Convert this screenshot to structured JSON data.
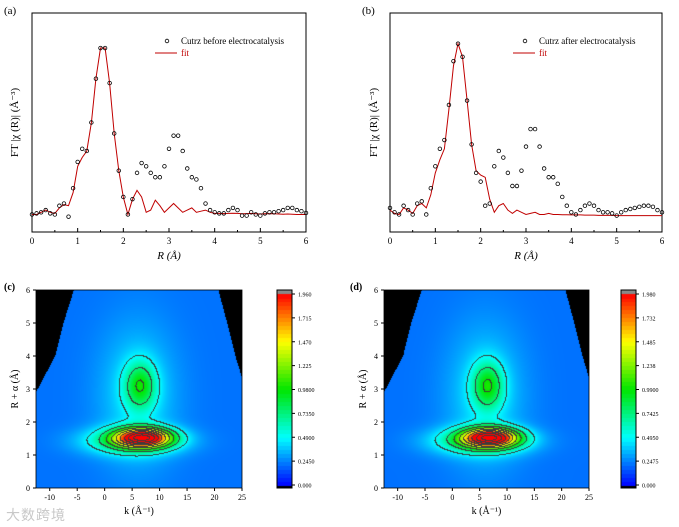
{
  "figure": {
    "watermark": "大数跨境"
  },
  "chart_data": [
    {
      "panel_label": "(a)",
      "type": "line",
      "xlabel": "R (Å)",
      "ylabel": "FT |χ (R)| (Å⁻³)",
      "xlim": [
        0,
        6
      ],
      "ylim": [
        0,
        1
      ],
      "xticks": [
        "0",
        "1",
        "2",
        "3",
        "4",
        "5",
        "6"
      ],
      "legend": {
        "position": "top-right"
      },
      "x": [
        0,
        0.1,
        0.2,
        0.3,
        0.4,
        0.5,
        0.6,
        0.7,
        0.8,
        0.9,
        1.0,
        1.1,
        1.2,
        1.3,
        1.4,
        1.5,
        1.6,
        1.7,
        1.8,
        1.9,
        2.0,
        2.1,
        2.2,
        2.3,
        2.4,
        2.5,
        2.6,
        2.7,
        2.8,
        2.9,
        3.0,
        3.1,
        3.2,
        3.3,
        3.4,
        3.5,
        3.6,
        3.7,
        3.8,
        3.9,
        4.0,
        4.1,
        4.2,
        4.3,
        4.4,
        4.5,
        4.6,
        4.7,
        4.8,
        4.9,
        5.0,
        5.1,
        5.2,
        5.3,
        5.4,
        5.5,
        5.6,
        5.7,
        5.8,
        5.9,
        6.0
      ],
      "series": [
        {
          "name": "Cutrz before electrocatalysis",
          "style": "open-circle",
          "color": "#000000",
          "values": [
            0.08,
            0.085,
            0.09,
            0.1,
            0.085,
            0.08,
            0.12,
            0.13,
            0.07,
            0.2,
            0.32,
            0.38,
            0.37,
            0.5,
            0.7,
            0.84,
            0.84,
            0.68,
            0.45,
            0.28,
            0.16,
            0.08,
            0.15,
            0.27,
            0.315,
            0.3,
            0.27,
            0.25,
            0.25,
            0.3,
            0.38,
            0.44,
            0.44,
            0.37,
            0.29,
            0.25,
            0.24,
            0.2,
            0.13,
            0.1,
            0.09,
            0.085,
            0.085,
            0.1,
            0.11,
            0.1,
            0.075,
            0.075,
            0.09,
            0.08,
            0.075,
            0.085,
            0.09,
            0.09,
            0.095,
            0.1,
            0.11,
            0.11,
            0.1,
            0.095,
            0.087
          ]
        },
        {
          "name": "fit",
          "style": "line",
          "color": "#c00000",
          "values": [
            0.08,
            0.08,
            0.09,
            0.1,
            0.09,
            0.085,
            0.11,
            0.125,
            0.12,
            0.18,
            0.3,
            0.34,
            0.37,
            0.5,
            0.7,
            0.84,
            0.84,
            0.68,
            0.45,
            0.28,
            0.16,
            0.08,
            0.15,
            0.19,
            0.16,
            0.09,
            0.1,
            0.145,
            0.12,
            0.09,
            0.11,
            0.13,
            0.11,
            0.09,
            0.1,
            0.11,
            0.09,
            0.095,
            0.1,
            0.09,
            0.085,
            0.085,
            0.084,
            0.085,
            0.086,
            0.085,
            0.083,
            0.084,
            0.085,
            0.083,
            0.082,
            0.083,
            0.084,
            0.083,
            0.082,
            0.081,
            0.082,
            0.081,
            0.08,
            0.08,
            0.08
          ]
        }
      ]
    },
    {
      "panel_label": "(b)",
      "type": "line",
      "xlabel": "R (Å)",
      "ylabel": "FT |χ (R)| (Å⁻³)",
      "xlim": [
        0,
        6
      ],
      "ylim": [
        0,
        1
      ],
      "xticks": [
        "0",
        "1",
        "2",
        "3",
        "4",
        "5",
        "6"
      ],
      "legend": {
        "position": "top-right"
      },
      "x": [
        0,
        0.1,
        0.2,
        0.3,
        0.4,
        0.5,
        0.6,
        0.7,
        0.8,
        0.9,
        1.0,
        1.1,
        1.2,
        1.3,
        1.4,
        1.5,
        1.6,
        1.7,
        1.8,
        1.9,
        2.0,
        2.1,
        2.2,
        2.3,
        2.4,
        2.5,
        2.6,
        2.7,
        2.8,
        2.9,
        3.0,
        3.1,
        3.2,
        3.3,
        3.4,
        3.5,
        3.6,
        3.7,
        3.8,
        3.9,
        4.0,
        4.1,
        4.2,
        4.3,
        4.4,
        4.5,
        4.6,
        4.7,
        4.8,
        4.9,
        5.0,
        5.1,
        5.2,
        5.3,
        5.4,
        5.5,
        5.6,
        5.7,
        5.8,
        5.9,
        6.0
      ],
      "series": [
        {
          "name": "Cutrz after electrocatalysis",
          "style": "open-circle",
          "color": "#000000",
          "values": [
            0.11,
            0.09,
            0.08,
            0.12,
            0.1,
            0.08,
            0.13,
            0.14,
            0.08,
            0.2,
            0.3,
            0.38,
            0.42,
            0.58,
            0.78,
            0.86,
            0.8,
            0.6,
            0.4,
            0.27,
            0.23,
            0.12,
            0.13,
            0.3,
            0.37,
            0.34,
            0.27,
            0.21,
            0.21,
            0.28,
            0.39,
            0.47,
            0.47,
            0.39,
            0.29,
            0.25,
            0.25,
            0.22,
            0.16,
            0.12,
            0.09,
            0.08,
            0.1,
            0.12,
            0.13,
            0.12,
            0.1,
            0.09,
            0.09,
            0.085,
            0.075,
            0.09,
            0.1,
            0.105,
            0.11,
            0.115,
            0.12,
            0.12,
            0.115,
            0.1,
            0.09
          ]
        },
        {
          "name": "fit",
          "style": "line",
          "color": "#c00000",
          "values": [
            0.1,
            0.085,
            0.08,
            0.11,
            0.1,
            0.085,
            0.12,
            0.13,
            0.11,
            0.17,
            0.27,
            0.33,
            0.38,
            0.56,
            0.76,
            0.86,
            0.8,
            0.6,
            0.4,
            0.28,
            0.26,
            0.25,
            0.15,
            0.09,
            0.12,
            0.13,
            0.1,
            0.085,
            0.1,
            0.09,
            0.08,
            0.085,
            0.09,
            0.08,
            0.08,
            0.085,
            0.08,
            0.08,
            0.079,
            0.079,
            0.078,
            0.078,
            0.078,
            0.077,
            0.077,
            0.077,
            0.076,
            0.076,
            0.076,
            0.076,
            0.075,
            0.075,
            0.075,
            0.075,
            0.075,
            0.075,
            0.075,
            0.075,
            0.075,
            0.075,
            0.075
          ]
        }
      ]
    },
    {
      "panel_label": "(c)",
      "type": "heatmap",
      "xlabel": "k (Å⁻¹)",
      "ylabel": "R + α (Å)",
      "xlim": [
        -12.5,
        25
      ],
      "ylim": [
        0,
        6
      ],
      "xticks": [
        "-10",
        "-5",
        "0",
        "5",
        "10",
        "15",
        "20",
        "25"
      ],
      "yticks": [
        "0",
        "1",
        "2",
        "3",
        "4",
        "5",
        "6"
      ],
      "colorbar": {
        "min": 0,
        "max": 1.96,
        "ticks": [
          "0.000",
          "0.2450",
          "0.4900",
          "0.7350",
          "0.9800",
          "1.225",
          "1.470",
          "1.715",
          "1.960"
        ]
      },
      "contour_step": 0.245,
      "cone_of_influence": {
        "left": [
          [
            2.9,
            -12.5
          ],
          [
            4,
            -9
          ],
          [
            5,
            -7.5
          ],
          [
            6,
            -5.6
          ]
        ],
        "right": [
          [
            3.35,
            25
          ],
          [
            4,
            23.8
          ],
          [
            5,
            22.3
          ],
          [
            6,
            20.7
          ]
        ]
      },
      "components": [
        {
          "k": 7,
          "R": 1.52,
          "amp": 1.74,
          "sk": 3.5,
          "sR": 0.2
        },
        {
          "k": 5,
          "R": 1.42,
          "amp": 0.55,
          "sk": 6,
          "sR": 0.28
        },
        {
          "k": 6.5,
          "R": 3.1,
          "amp": 0.58,
          "sk": 2,
          "sR": 0.5
        },
        {
          "k": 6,
          "R": 2.8,
          "amp": 0.22,
          "sk": 5,
          "sR": 1.5
        }
      ],
      "background": 0.22
    },
    {
      "panel_label": "(d)",
      "type": "heatmap",
      "xlabel": "k (Å⁻¹)",
      "ylabel": "R + α (Å)",
      "xlim": [
        -12.5,
        25
      ],
      "ylim": [
        0,
        6
      ],
      "xticks": [
        "-10",
        "-5",
        "0",
        "5",
        "10",
        "15",
        "20",
        "25"
      ],
      "yticks": [
        "0",
        "1",
        "2",
        "3",
        "4",
        "5",
        "6"
      ],
      "colorbar": {
        "min": 0,
        "max": 1.98,
        "ticks": [
          "0.000",
          "0.2475",
          "0.4950",
          "0.7425",
          "0.9900",
          "1.238",
          "1.485",
          "1.732",
          "1.980"
        ]
      },
      "contour_step": 0.2475,
      "cone_of_influence": {
        "left": [
          [
            2.9,
            -12.5
          ],
          [
            4,
            -9
          ],
          [
            5,
            -7.5
          ],
          [
            6,
            -5.6
          ]
        ],
        "right": [
          [
            3.35,
            25
          ],
          [
            4,
            23.8
          ],
          [
            5,
            22.3
          ],
          [
            6,
            20.7
          ]
        ]
      },
      "components": [
        {
          "k": 7,
          "R": 1.52,
          "amp": 1.76,
          "sk": 3.5,
          "sR": 0.2
        },
        {
          "k": 5,
          "R": 1.42,
          "amp": 0.55,
          "sk": 6,
          "sR": 0.28
        },
        {
          "k": 6.5,
          "R": 3.1,
          "amp": 0.6,
          "sk": 2,
          "sR": 0.5
        },
        {
          "k": 6,
          "R": 2.8,
          "amp": 0.22,
          "sk": 5,
          "sR": 1.5
        }
      ],
      "background": 0.22
    }
  ]
}
